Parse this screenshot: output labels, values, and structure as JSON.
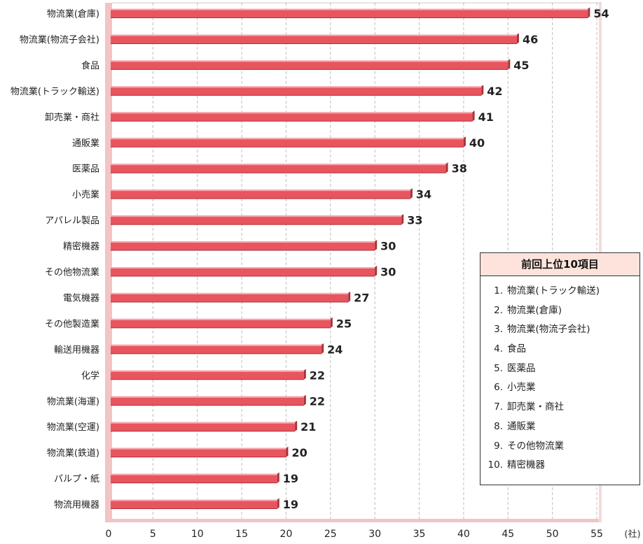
{
  "chart_data": {
    "type": "bar",
    "orientation": "horizontal",
    "categories": [
      "物流業(倉庫)",
      "物流業(物流子会社)",
      "食品",
      "物流業(トラック輸送)",
      "卸売業・商社",
      "通販業",
      "医薬品",
      "小売業",
      "アパレル製品",
      "精密機器",
      "その他物流業",
      "電気機器",
      "その他製造業",
      "輸送用機器",
      "化学",
      "物流業(海運)",
      "物流業(空運)",
      "物流業(鉄道)",
      "パルプ・紙",
      "物流用機器"
    ],
    "values": [
      54,
      46,
      45,
      42,
      41,
      40,
      38,
      34,
      33,
      30,
      30,
      27,
      25,
      24,
      22,
      22,
      21,
      20,
      19,
      19
    ],
    "xlim": [
      0,
      55
    ],
    "xticks": [
      "0",
      "5",
      "10",
      "15",
      "20",
      "25",
      "30",
      "35",
      "40",
      "45",
      "50",
      "55"
    ],
    "unit_label": "(社)",
    "grid": true,
    "colors": {
      "bar": "#e8555e",
      "bar_dark": "#a8323a",
      "bar_light": "#f6aab0",
      "frame": "#f2c4c4"
    }
  },
  "legend": {
    "title": "前回上位10項目",
    "items": [
      {
        "rank": "1.",
        "label": "物流業(トラック輸送)"
      },
      {
        "rank": "2.",
        "label": "物流業(倉庫)"
      },
      {
        "rank": "3.",
        "label": "物流業(物流子会社)"
      },
      {
        "rank": "4.",
        "label": "食品"
      },
      {
        "rank": "5.",
        "label": "医薬品"
      },
      {
        "rank": "6.",
        "label": "小売業"
      },
      {
        "rank": "7.",
        "label": "卸売業・商社"
      },
      {
        "rank": "8.",
        "label": "通販業"
      },
      {
        "rank": "9.",
        "label": "その他物流業"
      },
      {
        "rank": "10.",
        "label": "精密機器"
      }
    ]
  }
}
